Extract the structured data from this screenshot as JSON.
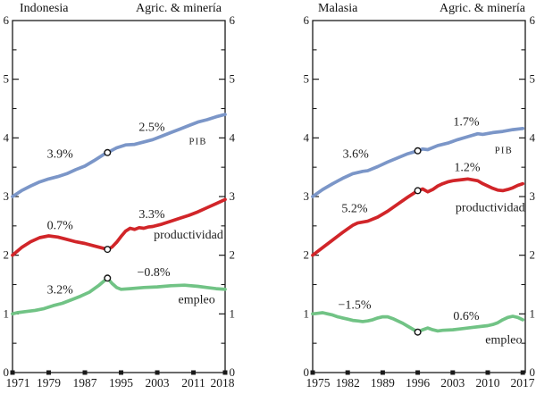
{
  "colors": {
    "pib": "#7b96c8",
    "productividad": "#d12529",
    "empleo": "#71c385",
    "axis": "#1a1a1a",
    "background": "#ffffff",
    "marker_fill": "#ffffff",
    "marker_stroke": "#151515"
  },
  "chart_data": [
    {
      "type": "line",
      "country": "Indonesia",
      "sector": "Agric. & minería",
      "x_range": [
        1971,
        2018
      ],
      "x_ticks": [
        1971,
        1979,
        1987,
        1995,
        2003,
        2011,
        2018
      ],
      "y_range": [
        0,
        6
      ],
      "y_ticks": [
        0,
        1,
        2,
        3,
        4,
        5,
        6
      ],
      "y_minor_step": 0.5,
      "break_year": 1992,
      "series": [
        {
          "name": "PIB",
          "color_key": "pib",
          "rate_before_break": "3.9%",
          "rate_after_break": "2.5%",
          "break_point": [
            1992,
            3.75
          ],
          "points": [
            [
              1971,
              3.0
            ],
            [
              1973,
              3.1
            ],
            [
              1975,
              3.18
            ],
            [
              1977,
              3.25
            ],
            [
              1979,
              3.3
            ],
            [
              1981,
              3.34
            ],
            [
              1983,
              3.39
            ],
            [
              1985,
              3.46
            ],
            [
              1987,
              3.52
            ],
            [
              1989,
              3.61
            ],
            [
              1991,
              3.71
            ],
            [
              1992,
              3.75
            ],
            [
              1994,
              3.83
            ],
            [
              1996,
              3.88
            ],
            [
              1998,
              3.89
            ],
            [
              2000,
              3.93
            ],
            [
              2002,
              3.97
            ],
            [
              2004,
              4.03
            ],
            [
              2006,
              4.09
            ],
            [
              2008,
              4.15
            ],
            [
              2010,
              4.21
            ],
            [
              2012,
              4.27
            ],
            [
              2014,
              4.31
            ],
            [
              2016,
              4.36
            ],
            [
              2018,
              4.4
            ]
          ]
        },
        {
          "name": "productividad",
          "color_key": "productividad",
          "rate_before_break": "0.7%",
          "rate_after_break": "3.3%",
          "break_point": [
            1992,
            2.1
          ],
          "points": [
            [
              1971,
              2.0
            ],
            [
              1973,
              2.13
            ],
            [
              1975,
              2.23
            ],
            [
              1977,
              2.3
            ],
            [
              1979,
              2.33
            ],
            [
              1981,
              2.31
            ],
            [
              1983,
              2.27
            ],
            [
              1985,
              2.23
            ],
            [
              1987,
              2.2
            ],
            [
              1989,
              2.16
            ],
            [
              1991,
              2.12
            ],
            [
              1992,
              2.1
            ],
            [
              1993,
              2.14
            ],
            [
              1994,
              2.22
            ],
            [
              1995,
              2.32
            ],
            [
              1996,
              2.41
            ],
            [
              1997,
              2.46
            ],
            [
              1998,
              2.44
            ],
            [
              1999,
              2.47
            ],
            [
              2000,
              2.46
            ],
            [
              2001,
              2.48
            ],
            [
              2002,
              2.49
            ],
            [
              2004,
              2.53
            ],
            [
              2006,
              2.58
            ],
            [
              2008,
              2.63
            ],
            [
              2010,
              2.68
            ],
            [
              2012,
              2.74
            ],
            [
              2014,
              2.81
            ],
            [
              2016,
              2.88
            ],
            [
              2018,
              2.95
            ]
          ]
        },
        {
          "name": "empleo",
          "color_key": "empleo",
          "rate_before_break": "3.2%",
          "rate_after_break": "−0.8%",
          "break_point": [
            1992,
            1.61
          ],
          "points": [
            [
              1971,
              1.0
            ],
            [
              1972,
              1.02
            ],
            [
              1974,
              1.04
            ],
            [
              1976,
              1.06
            ],
            [
              1978,
              1.09
            ],
            [
              1980,
              1.14
            ],
            [
              1982,
              1.18
            ],
            [
              1984,
              1.24
            ],
            [
              1986,
              1.3
            ],
            [
              1988,
              1.37
            ],
            [
              1990,
              1.48
            ],
            [
              1992,
              1.61
            ],
            [
              1993,
              1.52
            ],
            [
              1994,
              1.45
            ],
            [
              1995,
              1.42
            ],
            [
              1997,
              1.43
            ],
            [
              2000,
              1.45
            ],
            [
              2003,
              1.46
            ],
            [
              2006,
              1.48
            ],
            [
              2009,
              1.49
            ],
            [
              2012,
              1.47
            ],
            [
              2014,
              1.45
            ],
            [
              2016,
              1.43
            ],
            [
              2018,
              1.42
            ]
          ]
        }
      ],
      "annotations": [
        {
          "text": "3.9%",
          "x": 1981.5,
          "y": 3.73
        },
        {
          "text": "2.5%",
          "x": 2001.8,
          "y": 4.19
        },
        {
          "text": "PIB",
          "x": 2012.0,
          "y": 3.96,
          "smallcaps": true
        },
        {
          "text": "0.7%",
          "x": 1981.5,
          "y": 2.51
        },
        {
          "text": "3.3%",
          "x": 2001.8,
          "y": 2.7
        },
        {
          "text": "productividad",
          "x": 2009.9,
          "y": 2.35
        },
        {
          "text": "3.2%",
          "x": 1981.5,
          "y": 1.42
        },
        {
          "text": "−0.8%",
          "x": 2002.2,
          "y": 1.71
        },
        {
          "text": "empleo",
          "x": 2011.7,
          "y": 1.25
        }
      ]
    },
    {
      "type": "line",
      "country": "Malasia",
      "sector": "Agric. & minería",
      "x_range": [
        1975,
        2017.5
      ],
      "x_ticks": [
        1975,
        1982,
        1989,
        1996,
        2003,
        2010,
        2017
      ],
      "y_range": [
        0,
        6
      ],
      "y_ticks": [
        0,
        1,
        2,
        3,
        4,
        5,
        6
      ],
      "y_minor_step": 0.5,
      "break_year": 1996,
      "series": [
        {
          "name": "PIB",
          "color_key": "pib",
          "rate_before_break": "3.6%",
          "rate_after_break": "1.7%",
          "break_point": [
            1996,
            3.78
          ],
          "points": [
            [
              1975,
              3.0
            ],
            [
              1977,
              3.12
            ],
            [
              1979,
              3.22
            ],
            [
              1981,
              3.31
            ],
            [
              1983,
              3.39
            ],
            [
              1985,
              3.43
            ],
            [
              1986,
              3.44
            ],
            [
              1988,
              3.51
            ],
            [
              1990,
              3.59
            ],
            [
              1992,
              3.66
            ],
            [
              1994,
              3.73
            ],
            [
              1996,
              3.78
            ],
            [
              1997,
              3.81
            ],
            [
              1998,
              3.8
            ],
            [
              2000,
              3.87
            ],
            [
              2002,
              3.91
            ],
            [
              2004,
              3.97
            ],
            [
              2006,
              4.02
            ],
            [
              2008,
              4.07
            ],
            [
              2009,
              4.06
            ],
            [
              2011,
              4.09
            ],
            [
              2013,
              4.11
            ],
            [
              2015,
              4.14
            ],
            [
              2017,
              4.16
            ]
          ]
        },
        {
          "name": "productividad",
          "color_key": "productividad",
          "rate_before_break": "5.2%",
          "rate_after_break": "1.2%",
          "break_point": [
            1996,
            3.1
          ],
          "points": [
            [
              1975,
              2.0
            ],
            [
              1977,
              2.13
            ],
            [
              1979,
              2.26
            ],
            [
              1981,
              2.39
            ],
            [
              1983,
              2.51
            ],
            [
              1984,
              2.55
            ],
            [
              1986,
              2.58
            ],
            [
              1988,
              2.65
            ],
            [
              1990,
              2.75
            ],
            [
              1992,
              2.87
            ],
            [
              1994,
              2.99
            ],
            [
              1996,
              3.1
            ],
            [
              1997,
              3.13
            ],
            [
              1998,
              3.08
            ],
            [
              1999,
              3.12
            ],
            [
              2000,
              3.18
            ],
            [
              2001,
              3.22
            ],
            [
              2002,
              3.25
            ],
            [
              2003,
              3.27
            ],
            [
              2005,
              3.29
            ],
            [
              2006,
              3.3
            ],
            [
              2008,
              3.27
            ],
            [
              2009,
              3.22
            ],
            [
              2010,
              3.18
            ],
            [
              2011,
              3.14
            ],
            [
              2012,
              3.11
            ],
            [
              2013,
              3.1
            ],
            [
              2014,
              3.12
            ],
            [
              2015,
              3.15
            ],
            [
              2016,
              3.19
            ],
            [
              2017,
              3.22
            ]
          ]
        },
        {
          "name": "empleo",
          "color_key": "empleo",
          "rate_before_break": "−1.5%",
          "rate_after_break": "0.6%",
          "break_point": [
            1996,
            0.69
          ],
          "points": [
            [
              1975,
              1.0
            ],
            [
              1976,
              1.01
            ],
            [
              1977,
              1.02
            ],
            [
              1978,
              1.0
            ],
            [
              1979,
              0.98
            ],
            [
              1980,
              0.95
            ],
            [
              1981,
              0.93
            ],
            [
              1982,
              0.91
            ],
            [
              1983,
              0.89
            ],
            [
              1984,
              0.88
            ],
            [
              1985,
              0.87
            ],
            [
              1986,
              0.88
            ],
            [
              1987,
              0.9
            ],
            [
              1988,
              0.93
            ],
            [
              1989,
              0.95
            ],
            [
              1990,
              0.95
            ],
            [
              1991,
              0.92
            ],
            [
              1992,
              0.88
            ],
            [
              1993,
              0.84
            ],
            [
              1994,
              0.79
            ],
            [
              1995,
              0.74
            ],
            [
              1996,
              0.69
            ],
            [
              1997,
              0.73
            ],
            [
              1998,
              0.76
            ],
            [
              1999,
              0.73
            ],
            [
              2000,
              0.71
            ],
            [
              2001,
              0.72
            ],
            [
              2003,
              0.73
            ],
            [
              2005,
              0.75
            ],
            [
              2007,
              0.77
            ],
            [
              2009,
              0.79
            ],
            [
              2010,
              0.8
            ],
            [
              2011,
              0.82
            ],
            [
              2012,
              0.85
            ],
            [
              2013,
              0.9
            ],
            [
              2014,
              0.94
            ],
            [
              2015,
              0.96
            ],
            [
              2016,
              0.94
            ],
            [
              2017,
              0.9
            ]
          ]
        }
      ],
      "annotations": [
        {
          "text": "3.6%",
          "x": 1983.6,
          "y": 3.73
        },
        {
          "text": "1.7%",
          "x": 2005.7,
          "y": 4.28
        },
        {
          "text": "PIB",
          "x": 2013.2,
          "y": 3.81,
          "smallcaps": true
        },
        {
          "text": "5.2%",
          "x": 1983.4,
          "y": 2.8
        },
        {
          "text": "1.2%",
          "x": 2005.9,
          "y": 3.5
        },
        {
          "text": "productividad",
          "x": 2010.5,
          "y": 2.82
        },
        {
          "text": "−1.5%",
          "x": 1983.4,
          "y": 1.16
        },
        {
          "text": "0.6%",
          "x": 2005.7,
          "y": 0.97
        },
        {
          "text": "empleo",
          "x": 2013.2,
          "y": 0.56
        }
      ]
    }
  ]
}
